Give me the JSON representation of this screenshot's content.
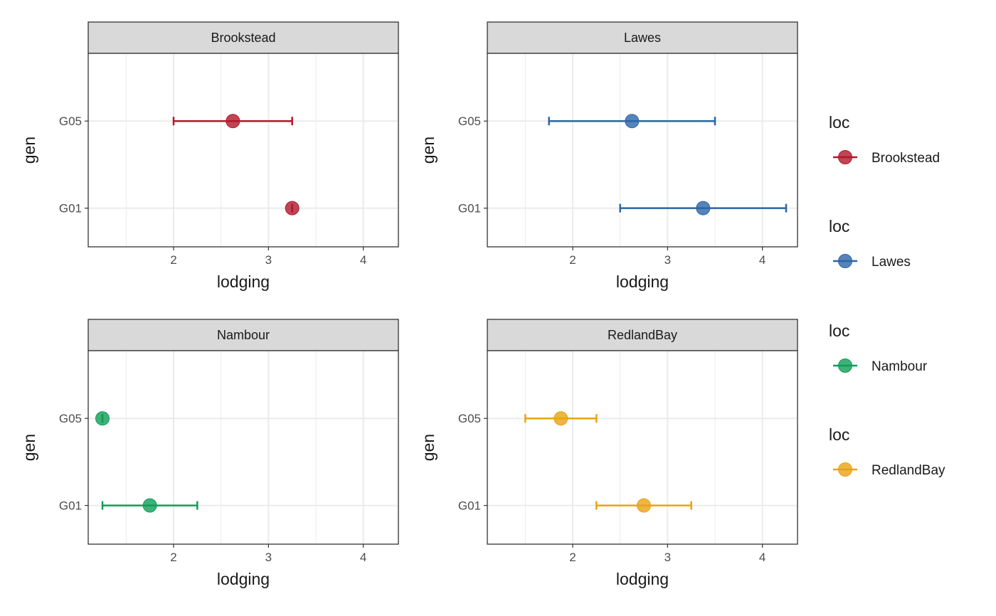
{
  "chart_data": {
    "type": "scatter",
    "description_kind": "faceted point plot with horizontal error bars",
    "xlabel": "lodging",
    "ylabel": "gen",
    "xlim": [
      1.1,
      4.37
    ],
    "xticks": [
      2,
      3,
      4
    ],
    "x_minor_gridlines": [
      1.5,
      2.5,
      3.5
    ],
    "categories": [
      "G05",
      "G01"
    ],
    "grid": true,
    "legend_placement": "right",
    "facets": [
      {
        "loc": "Brookstead",
        "color": "#b2182b",
        "points": [
          {
            "gen": "G05",
            "x": 2.625,
            "xmin": 2.0,
            "xmax": 3.25
          },
          {
            "gen": "G01",
            "x": 3.25,
            "xmin": 3.25,
            "xmax": 3.25
          }
        ]
      },
      {
        "loc": "Lawes",
        "color": "#2c65a6",
        "points": [
          {
            "gen": "G05",
            "x": 2.625,
            "xmin": 1.75,
            "xmax": 3.5
          },
          {
            "gen": "G01",
            "x": 3.375,
            "xmin": 2.5,
            "xmax": 4.25
          }
        ]
      },
      {
        "loc": "Nambour",
        "color": "#0f9d58",
        "points": [
          {
            "gen": "G05",
            "x": 1.25,
            "xmin": 1.25,
            "xmax": 1.25
          },
          {
            "gen": "G01",
            "x": 1.75,
            "xmin": 1.25,
            "xmax": 2.25
          }
        ]
      },
      {
        "loc": "RedlandBay",
        "color": "#e9a313",
        "points": [
          {
            "gen": "G05",
            "x": 1.875,
            "xmin": 1.5,
            "xmax": 2.25
          },
          {
            "gen": "G01",
            "x": 2.75,
            "xmin": 2.25,
            "xmax": 3.25
          }
        ]
      }
    ],
    "legends": [
      {
        "title": "loc",
        "label": "Brookstead",
        "color": "#b2182b"
      },
      {
        "title": "loc",
        "label": "Lawes",
        "color": "#2c65a6"
      },
      {
        "title": "loc",
        "label": "Nambour",
        "color": "#0f9d58"
      },
      {
        "title": "loc",
        "label": "RedlandBay",
        "color": "#e9a313"
      }
    ]
  }
}
